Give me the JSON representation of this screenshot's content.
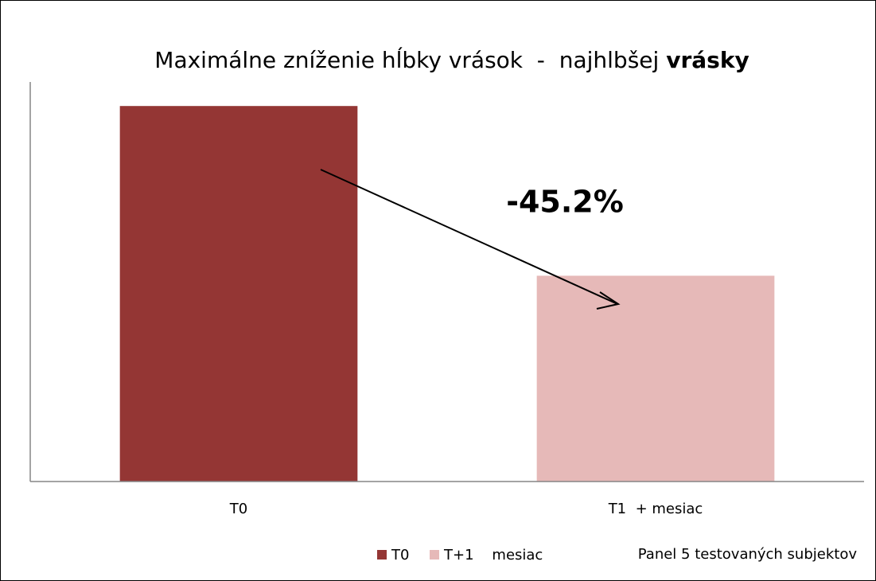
{
  "chart_data": {
    "type": "bar",
    "title_parts": [
      "Maximálne zníženie hĺbky vrások  -  najhlbšej ",
      "vrásky"
    ],
    "categories": [
      "T0",
      "T1  + mesiac"
    ],
    "values": [
      100,
      54.8
    ],
    "colors": [
      "#943634",
      "#e6b9b8"
    ],
    "legend": [
      "T0",
      "T+1    mesiac"
    ],
    "annotation": "-45.2%",
    "note": "Panel 5 testovaných subjektov",
    "ylim": [
      0,
      106.4
    ]
  }
}
